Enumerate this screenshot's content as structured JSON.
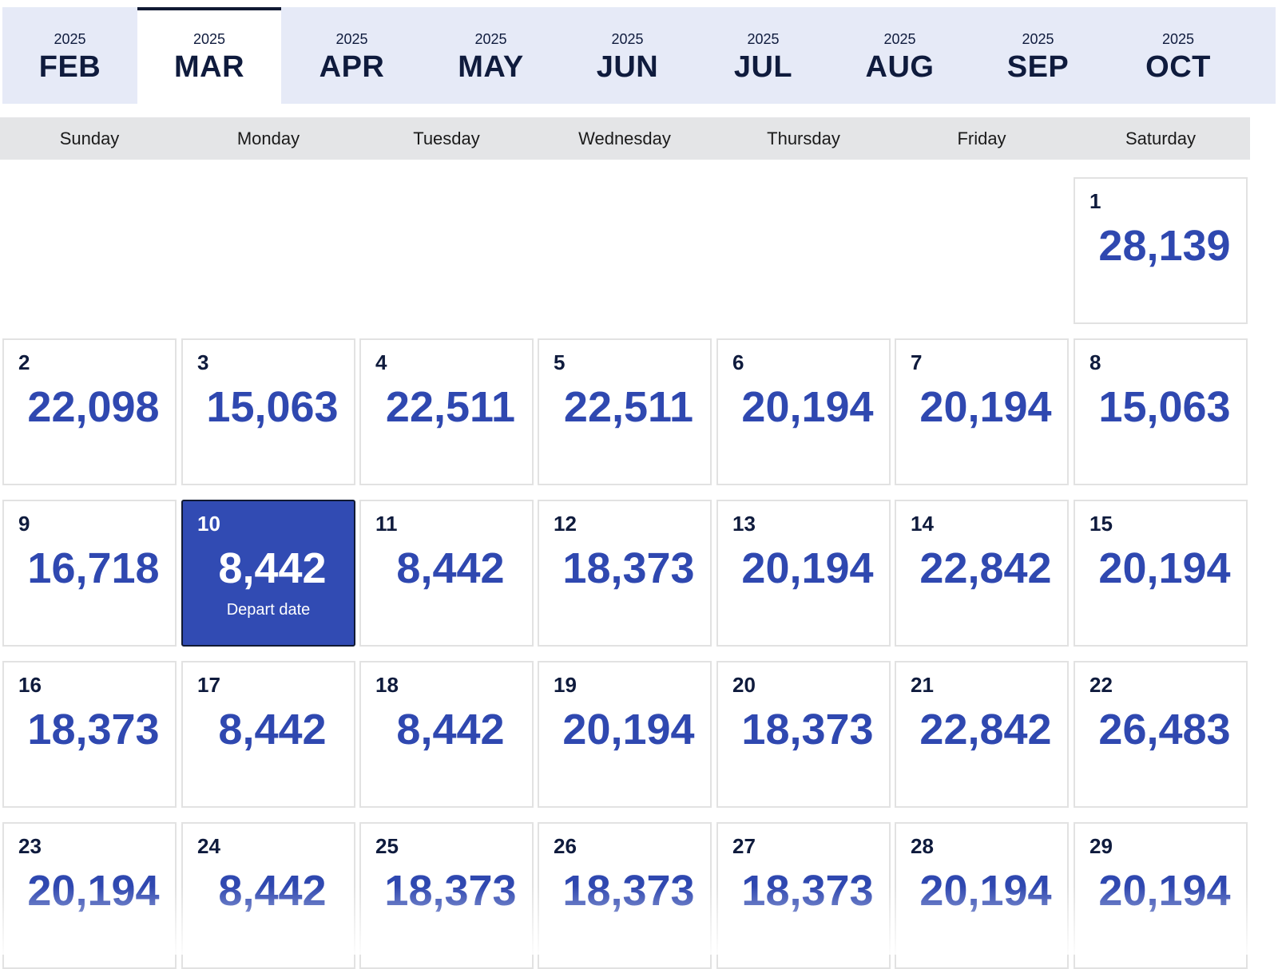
{
  "month_tabs": [
    {
      "year": "2025",
      "month": "FEB",
      "active": false
    },
    {
      "year": "2025",
      "month": "MAR",
      "active": true
    },
    {
      "year": "2025",
      "month": "APR",
      "active": false
    },
    {
      "year": "2025",
      "month": "MAY",
      "active": false
    },
    {
      "year": "2025",
      "month": "JUN",
      "active": false
    },
    {
      "year": "2025",
      "month": "JUL",
      "active": false
    },
    {
      "year": "2025",
      "month": "AUG",
      "active": false
    },
    {
      "year": "2025",
      "month": "SEP",
      "active": false
    },
    {
      "year": "2025",
      "month": "OCT",
      "active": false
    }
  ],
  "weekdays": [
    "Sunday",
    "Monday",
    "Tuesday",
    "Wednesday",
    "Thursday",
    "Friday",
    "Saturday"
  ],
  "weeks": [
    [
      null,
      null,
      null,
      null,
      null,
      null,
      {
        "day": "1",
        "price": "28,139"
      }
    ],
    [
      {
        "day": "2",
        "price": "22,098"
      },
      {
        "day": "3",
        "price": "15,063"
      },
      {
        "day": "4",
        "price": "22,511"
      },
      {
        "day": "5",
        "price": "22,511"
      },
      {
        "day": "6",
        "price": "20,194"
      },
      {
        "day": "7",
        "price": "20,194"
      },
      {
        "day": "8",
        "price": "15,063"
      }
    ],
    [
      {
        "day": "9",
        "price": "16,718"
      },
      {
        "day": "10",
        "price": "8,442",
        "selected": true,
        "caption": "Depart date"
      },
      {
        "day": "11",
        "price": "8,442"
      },
      {
        "day": "12",
        "price": "18,373"
      },
      {
        "day": "13",
        "price": "20,194"
      },
      {
        "day": "14",
        "price": "22,842"
      },
      {
        "day": "15",
        "price": "20,194"
      }
    ],
    [
      {
        "day": "16",
        "price": "18,373"
      },
      {
        "day": "17",
        "price": "8,442"
      },
      {
        "day": "18",
        "price": "8,442"
      },
      {
        "day": "19",
        "price": "20,194"
      },
      {
        "day": "20",
        "price": "18,373"
      },
      {
        "day": "21",
        "price": "22,842"
      },
      {
        "day": "22",
        "price": "26,483"
      }
    ],
    [
      {
        "day": "23",
        "price": "20,194"
      },
      {
        "day": "24",
        "price": "8,442"
      },
      {
        "day": "25",
        "price": "18,373"
      },
      {
        "day": "26",
        "price": "18,373"
      },
      {
        "day": "27",
        "price": "18,373"
      },
      {
        "day": "28",
        "price": "20,194"
      },
      {
        "day": "29",
        "price": "20,194"
      }
    ]
  ],
  "colors": {
    "tab_bar": "#e6eaf7",
    "active_tab_border": "#111a33",
    "price": "#2f48b0",
    "selected_bg": "#314bb3",
    "weekday_bg": "#e4e5e7"
  }
}
